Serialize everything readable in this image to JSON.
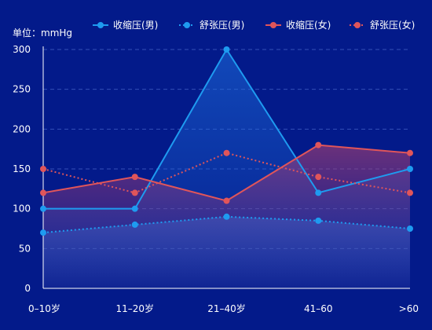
{
  "chart_data": {
    "type": "line",
    "unit_label": "单位：mmHg",
    "categories": [
      "0–10岁",
      "11–20岁",
      "21–40岁",
      "41–60",
      ">60"
    ],
    "ylim": [
      0,
      300
    ],
    "yticks": [
      0,
      50,
      100,
      150,
      200,
      250,
      300
    ],
    "grid": true,
    "legend_position": "top",
    "series": [
      {
        "name": "收缩压(男)",
        "values": [
          100,
          100,
          300,
          120,
          150
        ],
        "color": "#1e9bf0",
        "dashed": false,
        "fill": true
      },
      {
        "name": "舒张压(男)",
        "values": [
          70,
          80,
          90,
          85,
          75
        ],
        "color": "#1e9bf0",
        "dashed": true,
        "fill": true
      },
      {
        "name": "收缩压(女)",
        "values": [
          120,
          140,
          110,
          180,
          170
        ],
        "color": "#e0555a",
        "dashed": false,
        "fill": true
      },
      {
        "name": "舒张压(女)",
        "values": [
          150,
          120,
          170,
          140,
          120
        ],
        "color": "#e0555a",
        "dashed": true,
        "fill": false
      }
    ]
  },
  "colors": {
    "background": "#031a8a",
    "grid": "#3550b8",
    "axis": "#ffffff"
  }
}
